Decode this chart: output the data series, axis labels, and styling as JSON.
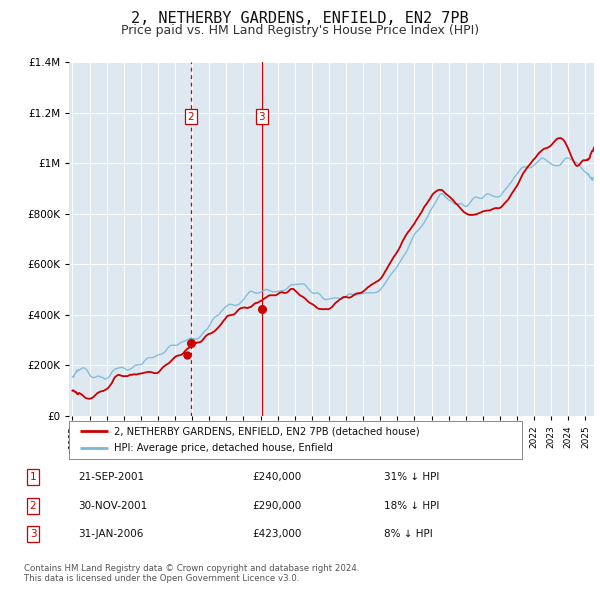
{
  "title": "2, NETHERBY GARDENS, ENFIELD, EN2 7PB",
  "subtitle": "Price paid vs. HM Land Registry's House Price Index (HPI)",
  "legend_line1": "2, NETHERBY GARDENS, ENFIELD, EN2 7PB (detached house)",
  "legend_line2": "HPI: Average price, detached house, Enfield",
  "transactions": [
    {
      "num": 2,
      "date_label": "30-NOV-2001",
      "price": 290000,
      "hpi_diff": "18% ↓ HPI",
      "x_year": 2001.92,
      "y": 290000,
      "vline_style": "dotted"
    },
    {
      "num": 3,
      "date_label": "31-JAN-2006",
      "price": 423000,
      "hpi_diff": "8% ↓ HPI",
      "x_year": 2006.08,
      "y": 423000,
      "vline_style": "solid"
    }
  ],
  "transaction1": {
    "num": 1,
    "date_label": "21-SEP-2001",
    "price": 240000,
    "hpi_diff": "31% ↓ HPI",
    "x_year": 2001.72,
    "y": 240000
  },
  "hpi_color": "#7ab8d9",
  "price_color": "#cc0000",
  "background_plot": "#dde8f0",
  "background_fig": "#ffffff",
  "vline_color": "#cc0000",
  "grid_color": "#ffffff",
  "ylim": [
    0,
    1400000
  ],
  "xlim_start": 1994.8,
  "xlim_end": 2025.5,
  "yticks": [
    0,
    200000,
    400000,
    600000,
    800000,
    1000000,
    1200000,
    1400000
  ],
  "footnote": "Contains HM Land Registry data © Crown copyright and database right 2024.\nThis data is licensed under the Open Government Licence v3.0.",
  "title_fontsize": 11,
  "subtitle_fontsize": 9
}
